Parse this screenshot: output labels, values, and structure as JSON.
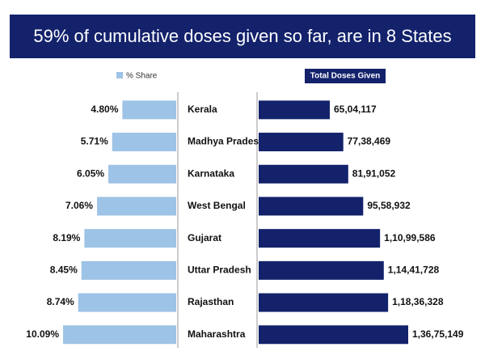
{
  "chart_data": {
    "type": "butterfly",
    "title": "59% of cumulative doses given so far, are in 8 States",
    "categories": [
      "Kerala",
      "Madhya Pradesh",
      "Karnataka",
      "West Bengal",
      "Gujarat",
      "Uttar Pradesh",
      "Rajasthan",
      "Maharashtra"
    ],
    "series": [
      {
        "name": "% Share",
        "color": "#9dc3e6",
        "values": [
          4.8,
          5.71,
          6.05,
          7.06,
          8.19,
          8.45,
          8.74,
          10.09
        ],
        "value_labels": [
          "4.80%",
          "5.71%",
          "6.05%",
          "7.06%",
          "8.19%",
          "8.45%",
          "8.74%",
          "10.09%"
        ]
      },
      {
        "name": "Total Doses Given",
        "color": "#13226b",
        "values": [
          6504117,
          7738469,
          8191052,
          9558932,
          11099586,
          11441728,
          11836328,
          13675149
        ],
        "value_labels": [
          "65,04,117",
          "77,38,469",
          "81,91,052",
          "95,58,932",
          "1,10,99,586",
          "1,14,41,728",
          "1,18,36,328",
          "1,36,75,149"
        ]
      }
    ]
  }
}
